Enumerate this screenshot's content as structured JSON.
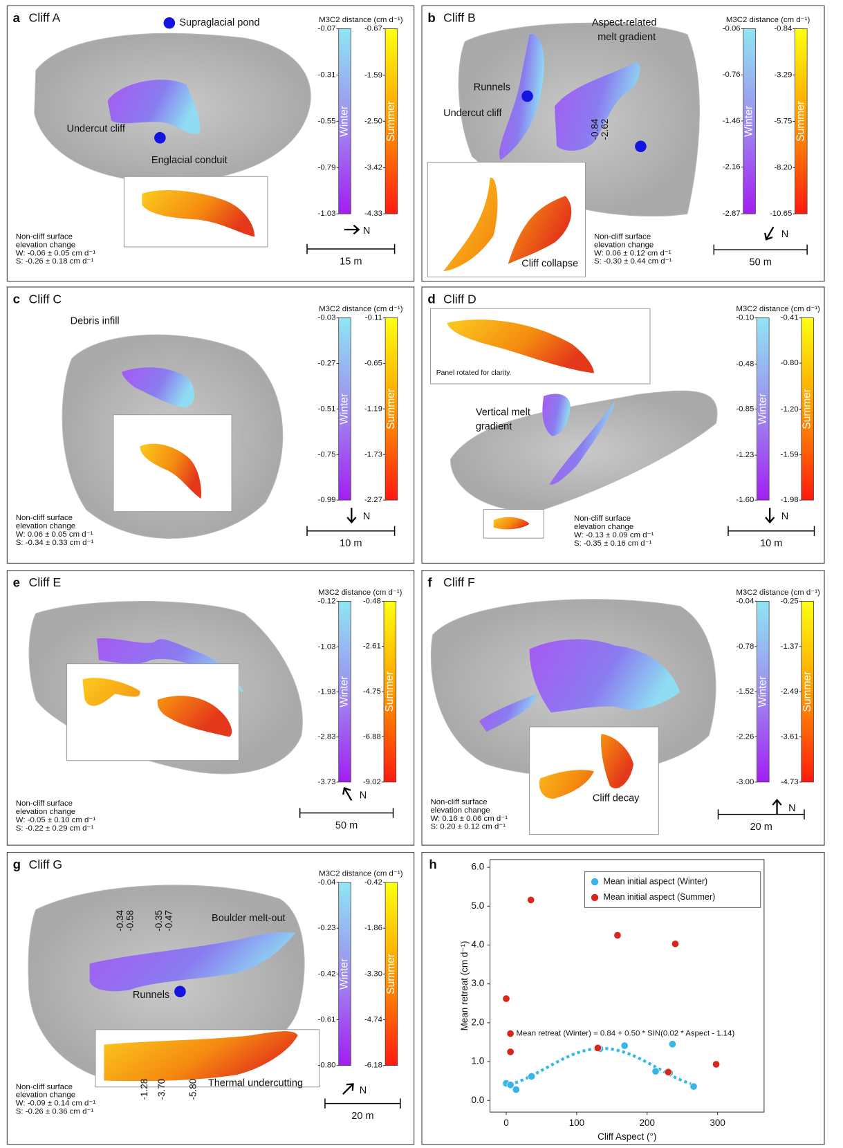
{
  "panels": [
    {
      "letter": "a",
      "title": "Cliff A",
      "colorbar_title": "M3C2 distance (cm d⁻¹)",
      "winter": {
        "name": "Winter",
        "ticks": [
          -0.07,
          -0.31,
          -0.55,
          -0.79,
          -1.03
        ]
      },
      "summer": {
        "name": "Summer",
        "ticks": [
          -0.67,
          -1.59,
          {
            "value": -2.5,
            "label": "-2.50"
          },
          -3.42,
          -4.33
        ]
      },
      "north": "N",
      "scale": "15 m",
      "note": [
        "Non-cliff surface",
        "elevation change",
        "W: -0.06 ± 0.05 cm d⁻¹",
        "S: -0.26 ± 0.18 cm d⁻¹"
      ],
      "annotations": [
        "Supraglacial pond",
        "Undercut cliff",
        "Englacial conduit"
      ]
    },
    {
      "letter": "b",
      "title": "Cliff B",
      "colorbar_title": "M3C2 distance (cm d⁻¹)",
      "winter": {
        "name": "Winter",
        "ticks": [
          -0.06,
          -0.76,
          -1.46,
          -2.16,
          -2.87
        ]
      },
      "summer": {
        "name": "Summer",
        "ticks": [
          -0.84,
          -3.29,
          -5.75,
          {
            "value": -8.2,
            "label": "-8.20"
          },
          -10.65
        ]
      },
      "north": "N",
      "scale": "50 m",
      "note": [
        "Non-cliff surface",
        "elevation change",
        "W: 0.06 ± 0.12 cm d⁻¹",
        "S: -0.30 ± 0.44 cm d⁻¹"
      ],
      "annotations": [
        "Aspect-related",
        "melt gradient",
        "Runnels",
        "Undercut cliff",
        "-0.84",
        "-2.62",
        "Cliff collapse"
      ]
    },
    {
      "letter": "c",
      "title": "Cliff C",
      "colorbar_title": "M3C2 distance (cm d⁻¹)",
      "winter": {
        "name": "Winter",
        "ticks": [
          -0.03,
          -0.27,
          -0.51,
          -0.75,
          -0.99
        ]
      },
      "summer": {
        "name": "Summer",
        "ticks": [
          -0.11,
          -0.65,
          -1.19,
          -1.73,
          -2.27
        ]
      },
      "north": "N",
      "scale": "10 m",
      "note": [
        "Non-cliff surface",
        "elevation change",
        "W: 0.06 ± 0.05 cm d⁻¹",
        "S: -0.34 ± 0.33 cm d⁻¹"
      ],
      "annotations": [
        "Debris infill"
      ]
    },
    {
      "letter": "d",
      "title": "Cliff D",
      "colorbar_title": "M3C2 distance (cm d⁻¹)",
      "winter": {
        "name": "Winter",
        "ticks": [
          {
            "value": -0.1,
            "label": "-0.10"
          },
          -0.48,
          -0.85,
          -1.23,
          {
            "value": -1.6,
            "label": "-1.60"
          }
        ]
      },
      "summer": {
        "name": "Summer",
        "ticks": [
          -0.41,
          {
            "value": -0.8,
            "label": "-0.80"
          },
          {
            "value": -1.2,
            "label": "-1.20"
          },
          -1.59,
          -1.98
        ]
      },
      "north": "N",
      "scale": "10 m",
      "note": [
        "Non-cliff surface",
        "elevation change",
        "W: -0.13 ± 0.09 cm d⁻¹",
        "S: -0.35 ± 0.16 cm d⁻¹"
      ],
      "annotations": [
        "Panel rotated for clarity.",
        "Vertical melt",
        "gradient"
      ]
    },
    {
      "letter": "e",
      "title": "Cliff E",
      "colorbar_title": "M3C2 distance (cm d⁻¹)",
      "winter": {
        "name": "Winter",
        "ticks": [
          -0.12,
          -1.03,
          -1.93,
          -2.83,
          -3.73
        ]
      },
      "summer": {
        "name": "Summer",
        "ticks": [
          -0.48,
          -2.61,
          -4.75,
          -6.88,
          -9.02
        ]
      },
      "north": "N",
      "scale": "50 m",
      "note": [
        "Non-cliff surface",
        "elevation change",
        "W: -0.05 ± 0.10 cm d⁻¹",
        "S: -0.22 ± 0.29 cm d⁻¹"
      ]
    },
    {
      "letter": "f",
      "title": "Cliff F",
      "colorbar_title": "M3C2 distance (cm d⁻¹)",
      "winter": {
        "name": "Winter",
        "ticks": [
          -0.04,
          -0.78,
          -1.52,
          -2.26,
          {
            "value": -3,
            "label": "-3.00"
          }
        ]
      },
      "summer": {
        "name": "Summer",
        "ticks": [
          -0.25,
          -1.37,
          -2.49,
          -3.61,
          -4.73
        ]
      },
      "north": "N",
      "scale": "20 m",
      "note": [
        "Non-cliff surface",
        "elevation change",
        "W: 0.16 ± 0.06 cm d⁻¹",
        "S: 0.20 ± 0.12 cm d⁻¹"
      ],
      "annotations": [
        "Cliff decay"
      ]
    },
    {
      "letter": "g",
      "title": "Cliff G",
      "colorbar_title": "M3C2 distance (cm d⁻¹)",
      "winter": {
        "name": "Winter",
        "ticks": [
          -0.04,
          -0.23,
          -0.42,
          -0.61,
          {
            "value": -0.8,
            "label": "-0.80"
          }
        ]
      },
      "summer": {
        "name": "Summer",
        "ticks": [
          -0.42,
          -1.86,
          {
            "value": -3.3,
            "label": "-3.30"
          },
          -4.74,
          -6.18
        ]
      },
      "north": "N",
      "scale": "20 m",
      "note": [
        "Non-cliff surface",
        "elevation change",
        "W: -0.09 ± 0.14 cm d⁻¹",
        "S: -0.26 ± 0.36 cm d⁻¹"
      ],
      "annotations": [
        "-0.34",
        "-0.58",
        "-0.35",
        "-0.47",
        "Boulder melt-out",
        "Runnels",
        "-1.28",
        "-3.70",
        "-5.80",
        "Thermal undercutting"
      ]
    }
  ],
  "chart_data": {
    "type": "scatter",
    "letter": "h",
    "xlabel": "Cliff Aspect (°)",
    "ylabel": "Mean retreat (cm d⁻¹)",
    "xlim": [
      -23,
      366
    ],
    "ylim": [
      -0.3,
      6.2
    ],
    "xticks": [
      0,
      100,
      200,
      300
    ],
    "yticks": [
      {
        "value": 0,
        "label": "0.0"
      },
      {
        "value": 1,
        "label": "1.0"
      },
      {
        "value": 2,
        "label": "2.0"
      },
      {
        "value": 3,
        "label": "3.0"
      },
      {
        "value": 4,
        "label": "4.0"
      },
      {
        "value": 5,
        "label": "5.0"
      },
      {
        "value": 6,
        "label": "6.0"
      }
    ],
    "legend": "upper right",
    "series": [
      {
        "name": "Mean initial aspect (Winter)",
        "color": "#39b4e6",
        "x": [
          0,
          6,
          14,
          36,
          133,
          168,
          212,
          232,
          236,
          266
        ],
        "values": [
          0.44,
          0.4,
          0.28,
          0.62,
          1.33,
          1.41,
          0.75,
          0.71,
          1.45,
          0.36
        ]
      },
      {
        "name": "Mean initial aspect (Summer)",
        "color": "#d9261c",
        "x": [
          0,
          6,
          6,
          35,
          130,
          158,
          230,
          240,
          298
        ],
        "values": [
          2.62,
          1.72,
          1.25,
          5.16,
          1.35,
          4.25,
          0.73,
          4.03,
          0.93
        ]
      }
    ],
    "fit": {
      "label": "Mean retreat (Winter) = 0.84 + 0.50 * SIN(0.02 * Aspect - 1.14)",
      "intercept": 0.84,
      "amplitude": 0.5,
      "frequency": 0.02,
      "phase": -1.14,
      "x": [
        5,
        262
      ],
      "color": "#2fb8ea"
    }
  }
}
